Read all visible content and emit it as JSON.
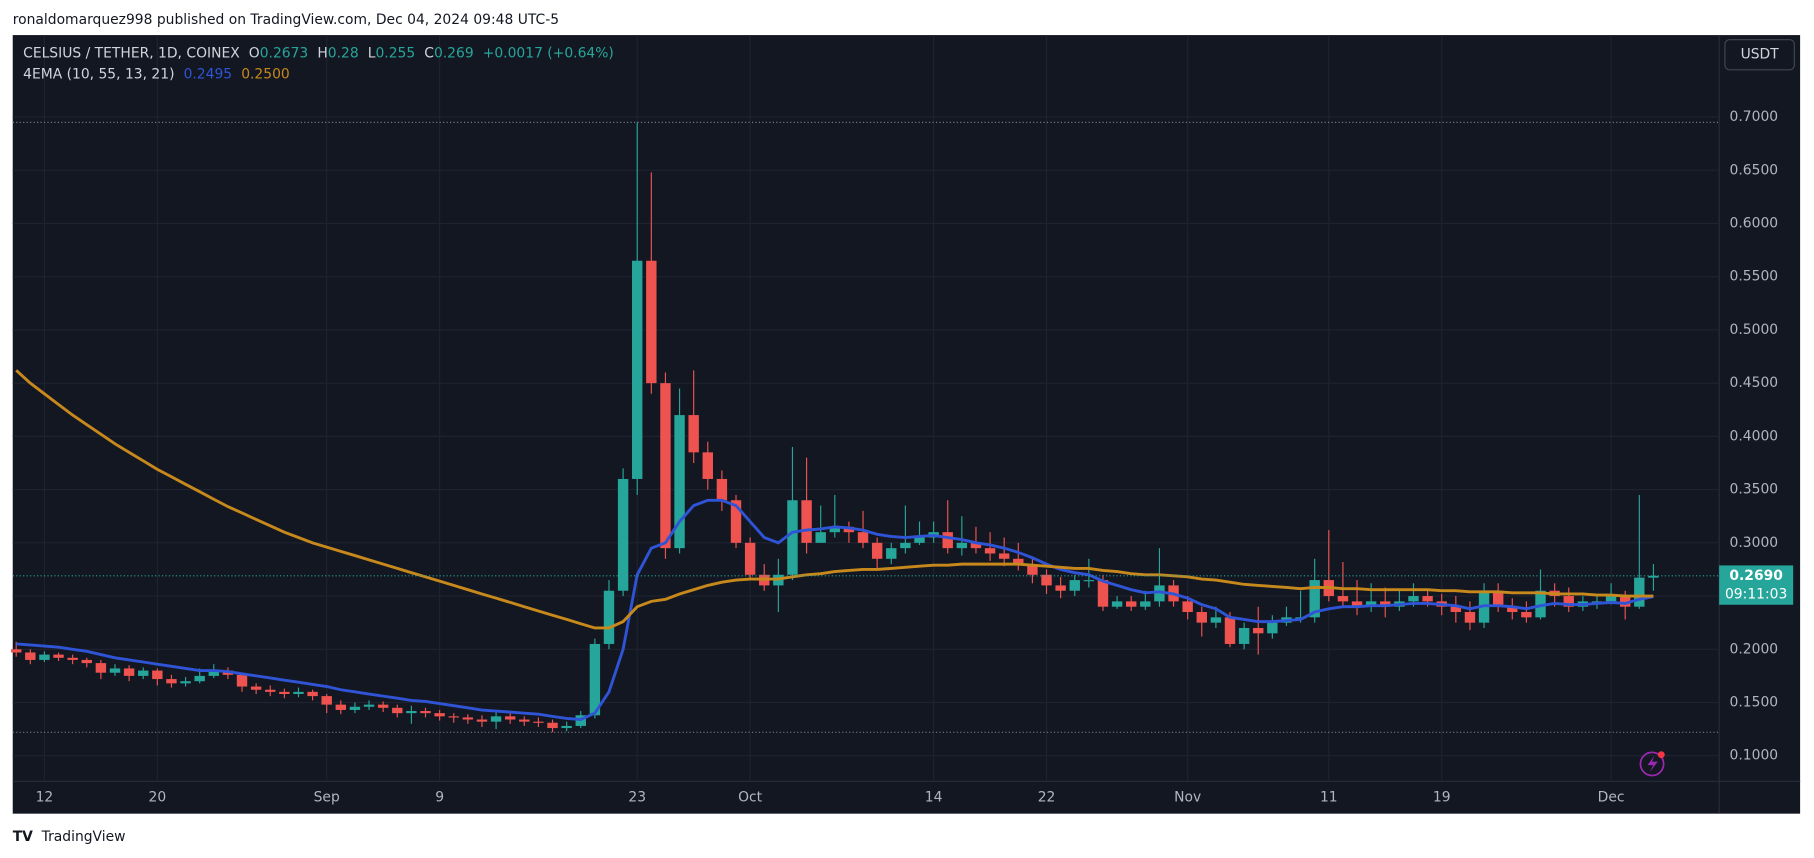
{
  "header": {
    "attribution": "ronaldomarquez998 published on TradingView.com, Dec 04, 2024 09:48 UTC-5",
    "footer": "TradingView"
  },
  "chart_data": {
    "type": "candlestick",
    "symbol": "CELSIUS / TETHER, 1D, COINEX",
    "ohlc_letters": [
      "O",
      "H",
      "L",
      "C"
    ],
    "change": "+0.0017 (+0.64%)",
    "indicator": "4EMA (10, 55, 13, 21)",
    "currency": "USDT",
    "price_label": "0.2690",
    "countdown": "09:11:03",
    "up_color": "#26a69a",
    "down_color": "#ef5350",
    "grid": true,
    "categories": [
      "Aug 10",
      "Aug 11",
      "Aug 12",
      "Aug 13",
      "Aug 14",
      "Aug 15",
      "Aug 16",
      "Aug 17",
      "Aug 18",
      "Aug 19",
      "Aug 20",
      "Aug 21",
      "Aug 22",
      "Aug 23",
      "Aug 24",
      "Aug 25",
      "Aug 26",
      "Aug 27",
      "Aug 28",
      "Aug 29",
      "Aug 30",
      "Aug 31",
      "Sep 1",
      "Sep 2",
      "Sep 3",
      "Sep 4",
      "Sep 5",
      "Sep 6",
      "Sep 7",
      "Sep 8",
      "Sep 9",
      "Sep 10",
      "Sep 11",
      "Sep 12",
      "Sep 13",
      "Sep 14",
      "Sep 15",
      "Sep 16",
      "Sep 17",
      "Sep 18",
      "Sep 19",
      "Sep 20",
      "Sep 21",
      "Sep 22",
      "Sep 23",
      "Sep 24",
      "Sep 25",
      "Sep 26",
      "Sep 27",
      "Sep 28",
      "Sep 29",
      "Sep 30",
      "Oct 1",
      "Oct 2",
      "Oct 3",
      "Oct 4",
      "Oct 5",
      "Oct 6",
      "Oct 7",
      "Oct 8",
      "Oct 9",
      "Oct 10",
      "Oct 11",
      "Oct 12",
      "Oct 13",
      "Oct 14",
      "Oct 15",
      "Oct 16",
      "Oct 17",
      "Oct 18",
      "Oct 19",
      "Oct 20",
      "Oct 21",
      "Oct 22",
      "Oct 23",
      "Oct 24",
      "Oct 25",
      "Oct 26",
      "Oct 27",
      "Oct 28",
      "Oct 29",
      "Oct 30",
      "Oct 31",
      "Nov 1",
      "Nov 2",
      "Nov 3",
      "Nov 4",
      "Nov 5",
      "Nov 6",
      "Nov 7",
      "Nov 8",
      "Nov 9",
      "Nov 10",
      "Nov 11",
      "Nov 12",
      "Nov 13",
      "Nov 14",
      "Nov 15",
      "Nov 16",
      "Nov 17",
      "Nov 18",
      "Nov 19",
      "Nov 20",
      "Nov 21",
      "Nov 22",
      "Nov 23",
      "Nov 24",
      "Nov 25",
      "Nov 26",
      "Nov 27",
      "Nov 28",
      "Nov 29",
      "Nov 30",
      "Dec 1",
      "Dec 2",
      "Dec 3",
      "Dec 4"
    ],
    "open": [
      0.2,
      0.197,
      0.19,
      0.195,
      0.192,
      0.19,
      0.187,
      0.178,
      0.182,
      0.175,
      0.18,
      0.172,
      0.168,
      0.17,
      0.175,
      0.18,
      0.176,
      0.165,
      0.162,
      0.16,
      0.158,
      0.16,
      0.156,
      0.148,
      0.143,
      0.146,
      0.148,
      0.145,
      0.14,
      0.142,
      0.14,
      0.137,
      0.136,
      0.134,
      0.132,
      0.137,
      0.134,
      0.132,
      0.131,
      0.126,
      0.128,
      0.138,
      0.205,
      0.255,
      0.36,
      0.565,
      0.45,
      0.295,
      0.42,
      0.385,
      0.36,
      0.34,
      0.3,
      0.27,
      0.26,
      0.27,
      0.34,
      0.3,
      0.31,
      0.315,
      0.31,
      0.3,
      0.285,
      0.295,
      0.3,
      0.305,
      0.31,
      0.295,
      0.3,
      0.295,
      0.29,
      0.285,
      0.28,
      0.27,
      0.26,
      0.255,
      0.265,
      0.265,
      0.24,
      0.245,
      0.24,
      0.245,
      0.26,
      0.245,
      0.235,
      0.225,
      0.23,
      0.205,
      0.22,
      0.215,
      0.225,
      0.23,
      0.23,
      0.265,
      0.25,
      0.245,
      0.24,
      0.245,
      0.24,
      0.245,
      0.25,
      0.245,
      0.24,
      0.235,
      0.225,
      0.255,
      0.24,
      0.235,
      0.23,
      0.255,
      0.25,
      0.24,
      0.245,
      0.245,
      0.25,
      0.24,
      0.2673
    ],
    "high": [
      0.207,
      0.2,
      0.198,
      0.197,
      0.195,
      0.192,
      0.19,
      0.186,
      0.185,
      0.183,
      0.182,
      0.176,
      0.174,
      0.182,
      0.186,
      0.183,
      0.178,
      0.168,
      0.166,
      0.163,
      0.164,
      0.162,
      0.158,
      0.152,
      0.15,
      0.152,
      0.151,
      0.148,
      0.147,
      0.145,
      0.143,
      0.14,
      0.139,
      0.138,
      0.142,
      0.14,
      0.137,
      0.136,
      0.134,
      0.132,
      0.142,
      0.21,
      0.265,
      0.37,
      0.695,
      0.648,
      0.46,
      0.445,
      0.462,
      0.395,
      0.368,
      0.345,
      0.305,
      0.28,
      0.285,
      0.39,
      0.38,
      0.335,
      0.345,
      0.32,
      0.33,
      0.305,
      0.3,
      0.335,
      0.32,
      0.32,
      0.34,
      0.325,
      0.315,
      0.31,
      0.305,
      0.3,
      0.285,
      0.275,
      0.268,
      0.27,
      0.285,
      0.27,
      0.25,
      0.25,
      0.255,
      0.295,
      0.265,
      0.25,
      0.24,
      0.24,
      0.235,
      0.225,
      0.24,
      0.232,
      0.24,
      0.255,
      0.285,
      0.312,
      0.282,
      0.265,
      0.262,
      0.258,
      0.255,
      0.262,
      0.255,
      0.252,
      0.25,
      0.245,
      0.262,
      0.262,
      0.248,
      0.245,
      0.275,
      0.262,
      0.258,
      0.25,
      0.252,
      0.262,
      0.255,
      0.345,
      0.28
    ],
    "low": [
      0.193,
      0.186,
      0.188,
      0.189,
      0.186,
      0.183,
      0.172,
      0.175,
      0.17,
      0.172,
      0.166,
      0.164,
      0.165,
      0.168,
      0.173,
      0.172,
      0.16,
      0.158,
      0.156,
      0.154,
      0.155,
      0.152,
      0.14,
      0.139,
      0.14,
      0.143,
      0.141,
      0.136,
      0.13,
      0.136,
      0.133,
      0.131,
      0.13,
      0.127,
      0.125,
      0.13,
      0.128,
      0.127,
      0.122,
      0.123,
      0.126,
      0.135,
      0.2,
      0.25,
      0.345,
      0.44,
      0.285,
      0.29,
      0.375,
      0.35,
      0.33,
      0.295,
      0.265,
      0.255,
      0.235,
      0.265,
      0.29,
      0.3,
      0.305,
      0.3,
      0.295,
      0.275,
      0.28,
      0.29,
      0.298,
      0.3,
      0.29,
      0.288,
      0.29,
      0.283,
      0.278,
      0.274,
      0.262,
      0.252,
      0.248,
      0.25,
      0.258,
      0.236,
      0.238,
      0.236,
      0.237,
      0.24,
      0.24,
      0.228,
      0.212,
      0.22,
      0.202,
      0.2,
      0.195,
      0.21,
      0.222,
      0.225,
      0.225,
      0.245,
      0.24,
      0.232,
      0.235,
      0.23,
      0.236,
      0.24,
      0.24,
      0.232,
      0.225,
      0.218,
      0.22,
      0.235,
      0.228,
      0.225,
      0.228,
      0.24,
      0.235,
      0.236,
      0.238,
      0.242,
      0.228,
      0.238,
      0.255
    ],
    "close": [
      0.197,
      0.19,
      0.195,
      0.192,
      0.19,
      0.187,
      0.178,
      0.182,
      0.175,
      0.18,
      0.172,
      0.168,
      0.17,
      0.175,
      0.18,
      0.176,
      0.165,
      0.162,
      0.16,
      0.158,
      0.16,
      0.156,
      0.148,
      0.143,
      0.146,
      0.148,
      0.145,
      0.14,
      0.142,
      0.14,
      0.137,
      0.136,
      0.134,
      0.132,
      0.137,
      0.134,
      0.132,
      0.131,
      0.126,
      0.128,
      0.138,
      0.205,
      0.255,
      0.36,
      0.565,
      0.45,
      0.295,
      0.42,
      0.385,
      0.36,
      0.34,
      0.3,
      0.27,
      0.26,
      0.27,
      0.34,
      0.3,
      0.31,
      0.315,
      0.31,
      0.3,
      0.285,
      0.295,
      0.3,
      0.305,
      0.31,
      0.295,
      0.3,
      0.295,
      0.29,
      0.285,
      0.28,
      0.27,
      0.26,
      0.255,
      0.265,
      0.265,
      0.24,
      0.245,
      0.24,
      0.245,
      0.26,
      0.245,
      0.235,
      0.225,
      0.23,
      0.205,
      0.22,
      0.215,
      0.225,
      0.23,
      0.23,
      0.265,
      0.25,
      0.245,
      0.24,
      0.245,
      0.24,
      0.245,
      0.25,
      0.245,
      0.24,
      0.235,
      0.225,
      0.255,
      0.24,
      0.235,
      0.23,
      0.255,
      0.25,
      0.24,
      0.245,
      0.245,
      0.25,
      0.24,
      0.2673,
      0.269
    ],
    "series": [
      {
        "name": "EMA 10",
        "color": "#2f54d6",
        "legend_value": "0.2495",
        "values": [
          0.205,
          0.204,
          0.203,
          0.202,
          0.2,
          0.198,
          0.195,
          0.192,
          0.19,
          0.188,
          0.186,
          0.184,
          0.182,
          0.18,
          0.18,
          0.179,
          0.177,
          0.175,
          0.173,
          0.171,
          0.169,
          0.167,
          0.165,
          0.162,
          0.16,
          0.158,
          0.156,
          0.154,
          0.152,
          0.151,
          0.149,
          0.147,
          0.145,
          0.143,
          0.142,
          0.141,
          0.14,
          0.139,
          0.137,
          0.135,
          0.134,
          0.14,
          0.16,
          0.2,
          0.27,
          0.295,
          0.3,
          0.32,
          0.335,
          0.34,
          0.34,
          0.335,
          0.32,
          0.305,
          0.3,
          0.31,
          0.312,
          0.313,
          0.315,
          0.314,
          0.312,
          0.308,
          0.306,
          0.305,
          0.306,
          0.307,
          0.305,
          0.303,
          0.3,
          0.298,
          0.295,
          0.291,
          0.286,
          0.28,
          0.275,
          0.272,
          0.27,
          0.264,
          0.26,
          0.256,
          0.253,
          0.254,
          0.252,
          0.248,
          0.242,
          0.238,
          0.23,
          0.228,
          0.226,
          0.226,
          0.227,
          0.228,
          0.235,
          0.238,
          0.24,
          0.24,
          0.241,
          0.241,
          0.242,
          0.243,
          0.243,
          0.242,
          0.241,
          0.238,
          0.241,
          0.241,
          0.24,
          0.238,
          0.241,
          0.243,
          0.242,
          0.242,
          0.243,
          0.244,
          0.243,
          0.247,
          0.2495
        ]
      },
      {
        "name": "EMA 55",
        "color": "#c8891c",
        "legend_value": "0.2500",
        "values": [
          0.462,
          0.45,
          0.44,
          0.43,
          0.42,
          0.411,
          0.402,
          0.393,
          0.385,
          0.377,
          0.369,
          0.362,
          0.355,
          0.348,
          0.341,
          0.334,
          0.328,
          0.322,
          0.316,
          0.31,
          0.305,
          0.3,
          0.296,
          0.292,
          0.288,
          0.284,
          0.28,
          0.276,
          0.272,
          0.268,
          0.264,
          0.26,
          0.256,
          0.252,
          0.248,
          0.244,
          0.24,
          0.236,
          0.232,
          0.228,
          0.224,
          0.22,
          0.22,
          0.226,
          0.24,
          0.245,
          0.247,
          0.252,
          0.256,
          0.26,
          0.263,
          0.265,
          0.266,
          0.266,
          0.266,
          0.268,
          0.27,
          0.271,
          0.273,
          0.274,
          0.275,
          0.275,
          0.276,
          0.277,
          0.278,
          0.279,
          0.279,
          0.28,
          0.28,
          0.28,
          0.28,
          0.28,
          0.279,
          0.278,
          0.277,
          0.276,
          0.276,
          0.274,
          0.273,
          0.271,
          0.27,
          0.27,
          0.269,
          0.268,
          0.266,
          0.265,
          0.263,
          0.261,
          0.26,
          0.259,
          0.258,
          0.257,
          0.258,
          0.258,
          0.257,
          0.257,
          0.256,
          0.256,
          0.256,
          0.256,
          0.256,
          0.255,
          0.255,
          0.254,
          0.254,
          0.254,
          0.253,
          0.253,
          0.253,
          0.252,
          0.252,
          0.252,
          0.251,
          0.251,
          0.25,
          0.25,
          0.25
        ]
      }
    ],
    "ylim": [
      0.076,
      0.777
    ],
    "yticks": [
      {
        "value": 0.1,
        "label": "0.1000"
      },
      {
        "value": 0.15,
        "label": "0.1500"
      },
      {
        "value": 0.2,
        "label": "0.2000"
      },
      {
        "value": 0.25,
        "label": "0.2500"
      },
      {
        "value": 0.3,
        "label": "0.3000"
      },
      {
        "value": 0.35,
        "label": "0.3500"
      },
      {
        "value": 0.4,
        "label": "0.4000"
      },
      {
        "value": 0.45,
        "label": "0.4500"
      },
      {
        "value": 0.5,
        "label": "0.5000"
      },
      {
        "value": 0.55,
        "label": "0.5500"
      },
      {
        "value": 0.6,
        "label": "0.6000"
      },
      {
        "value": 0.65,
        "label": "0.6500"
      },
      {
        "value": 0.7,
        "label": "0.7000"
      }
    ],
    "xticks": [
      {
        "value": "Aug 12",
        "label": "12"
      },
      {
        "value": "Aug 20",
        "label": "20"
      },
      {
        "value": "Sep 1",
        "label": "Sep"
      },
      {
        "value": "Sep 9",
        "label": "9"
      },
      {
        "value": "Sep 23",
        "label": "23"
      },
      {
        "value": "Oct 1",
        "label": "Oct"
      },
      {
        "value": "Oct 14",
        "label": "14"
      },
      {
        "value": "Oct 22",
        "label": "22"
      },
      {
        "value": "Nov 1",
        "label": "Nov"
      },
      {
        "value": "Nov 11",
        "label": "11"
      },
      {
        "value": "Nov 19",
        "label": "19"
      },
      {
        "value": "Dec 1",
        "label": "Dec"
      }
    ]
  }
}
